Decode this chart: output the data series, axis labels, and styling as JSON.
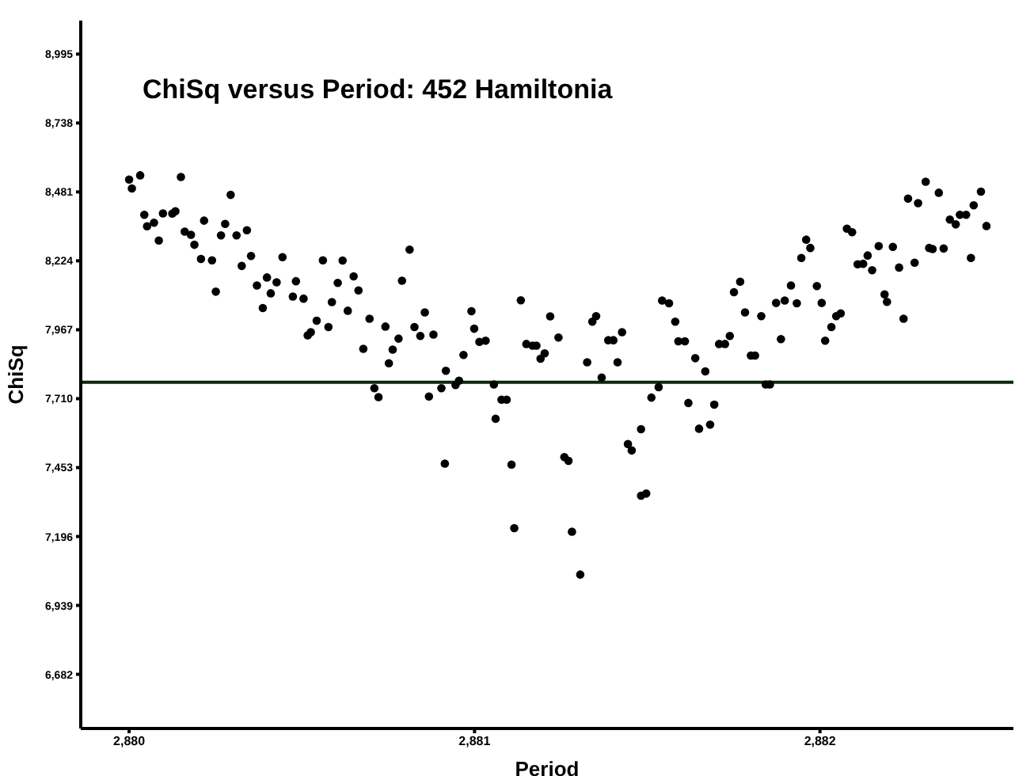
{
  "chart_data": {
    "type": "scatter",
    "title": "ChiSq versus Period: 452 Hamiltonia",
    "xlabel": "Period",
    "ylabel": "ChiSq",
    "color": "#000000",
    "marker": "circle",
    "xlim": [
      2879.86,
      2882.56
    ],
    "ylim": [
      6480,
      9120
    ],
    "xticks": [
      {
        "value": 2880,
        "label": "2,880"
      },
      {
        "value": 2881,
        "label": "2,881"
      },
      {
        "value": 2882,
        "label": "2,882"
      }
    ],
    "yticks": [
      {
        "value": 6682,
        "label": "6,682"
      },
      {
        "value": 6939,
        "label": "6,939"
      },
      {
        "value": 7196,
        "label": "7,196"
      },
      {
        "value": 7453,
        "label": "7,453"
      },
      {
        "value": 7710,
        "label": "7,710"
      },
      {
        "value": 7967,
        "label": "7,967"
      },
      {
        "value": 8224,
        "label": "8,224"
      },
      {
        "value": 8481,
        "label": "8,481"
      },
      {
        "value": 8738,
        "label": "8,738"
      },
      {
        "value": 8995,
        "label": "8,995"
      }
    ],
    "ref_lines": [
      {
        "axis": "y",
        "value": 7771,
        "color": "#0a2a0a"
      }
    ],
    "x": [
      2880,
      2880.008,
      2880.032,
      2880.044,
      2880.052,
      2880.072,
      2880.086,
      2880.098,
      2880.125,
      2880.134,
      2880.15,
      2880.161,
      2880.179,
      2880.189,
      2880.208,
      2880.217,
      2880.24,
      2880.251,
      2880.266,
      2880.278,
      2880.294,
      2880.311,
      2880.326,
      2880.341,
      2880.353,
      2880.37,
      2880.387,
      2880.399,
      2880.41,
      2880.427,
      2880.444,
      2880.474,
      2880.483,
      2880.505,
      2880.517,
      2880.526,
      2880.543,
      2880.561,
      2880.577,
      2880.587,
      2880.604,
      2880.618,
      2880.633,
      2880.65,
      2880.664,
      2880.678,
      2880.696,
      2880.71,
      2880.722,
      2880.742,
      2880.752,
      2880.763,
      2880.78,
      2880.79,
      2880.812,
      2880.826,
      2880.843,
      2880.856,
      2880.868,
      2880.881,
      2880.904,
      2880.914,
      2880.917,
      2880.945,
      2880.955,
      2880.968,
      2880.991,
      2880.999,
      2881.014,
      2881.032,
      2881.056,
      2881.061,
      2881.078,
      2881.093,
      2881.107,
      2881.115,
      2881.134,
      2881.15,
      2881.168,
      2881.179,
      2881.191,
      2881.203,
      2881.219,
      2881.243,
      2881.26,
      2881.272,
      2881.282,
      2881.306,
      2881.326,
      2881.341,
      2881.352,
      2881.368,
      2881.387,
      2881.402,
      2881.414,
      2881.427,
      2881.444,
      2881.455,
      2881.482,
      2881.482,
      2881.497,
      2881.512,
      2881.533,
      2881.543,
      2881.563,
      2881.581,
      2881.59,
      2881.609,
      2881.619,
      2881.639,
      2881.65,
      2881.668,
      2881.682,
      2881.694,
      2881.708,
      2881.725,
      2881.739,
      2881.751,
      2881.769,
      2881.783,
      2881.8,
      2881.812,
      2881.83,
      2881.843,
      2881.855,
      2881.873,
      2881.887,
      2881.898,
      2881.916,
      2881.933,
      2881.946,
      2881.96,
      2881.972,
      2881.991,
      2882.005,
      2882.015,
      2882.033,
      2882.047,
      2882.06,
      2882.078,
      2882.093,
      2882.109,
      2882.125,
      2882.138,
      2882.151,
      2882.17,
      2882.187,
      2882.194,
      2882.211,
      2882.229,
      2882.242,
      2882.255,
      2882.274,
      2882.284,
      2882.306,
      2882.316,
      2882.326,
      2882.344,
      2882.358,
      2882.376,
      2882.393,
      2882.405,
      2882.423,
      2882.437,
      2882.445,
      2882.466,
      2882.482
    ],
    "values": [
      8527,
      8494,
      8543,
      8396,
      8353,
      8366,
      8300,
      8401,
      8400,
      8409,
      8537,
      8333,
      8321,
      8284,
      8231,
      8374,
      8226,
      8109,
      8319,
      8362,
      8470,
      8319,
      8205,
      8338,
      8242,
      8132,
      8048,
      8162,
      8103,
      8144,
      8238,
      8091,
      8148,
      8083,
      7946,
      7958,
      8001,
      8226,
      7977,
      8070,
      8142,
      8225,
      8038,
      8166,
      8114,
      7896,
      8008,
      7749,
      7716,
      7979,
      7842,
      7893,
      7934,
      8150,
      8266,
      7977,
      7944,
      8032,
      7718,
      7949,
      7749,
      7468,
      7814,
      7761,
      7777,
      7873,
      8036,
      7971,
      7922,
      7926,
      7763,
      7635,
      7706,
      7706,
      7464,
      7227,
      8077,
      7914,
      7908,
      7908,
      7859,
      7879,
      8017,
      7938,
      7492,
      7478,
      7214,
      7054,
      7846,
      7997,
      8018,
      7789,
      7928,
      7928,
      7846,
      7958,
      7541,
      7517,
      7596,
      7348,
      7356,
      7714,
      7753,
      8076,
      8066,
      7997,
      7924,
      7924,
      7694,
      7861,
      7598,
      7812,
      7613,
      7688,
      7914,
      7914,
      7944,
      8107,
      8146,
      8032,
      7871,
      7871,
      8018,
      7763,
      7763,
      8067,
      7932,
      8076,
      8132,
      8066,
      8235,
      8303,
      8272,
      8130,
      8067,
      7926,
      7977,
      8018,
      8028,
      8344,
      8331,
      8211,
      8213,
      8244,
      8189,
      8279,
      8099,
      8071,
      8276,
      8199,
      8008,
      8456,
      8217,
      8439,
      8519,
      8272,
      8268,
      8478,
      8270,
      8378,
      8360,
      8396,
      8396,
      8235,
      8431,
      8482,
      8354
    ]
  }
}
